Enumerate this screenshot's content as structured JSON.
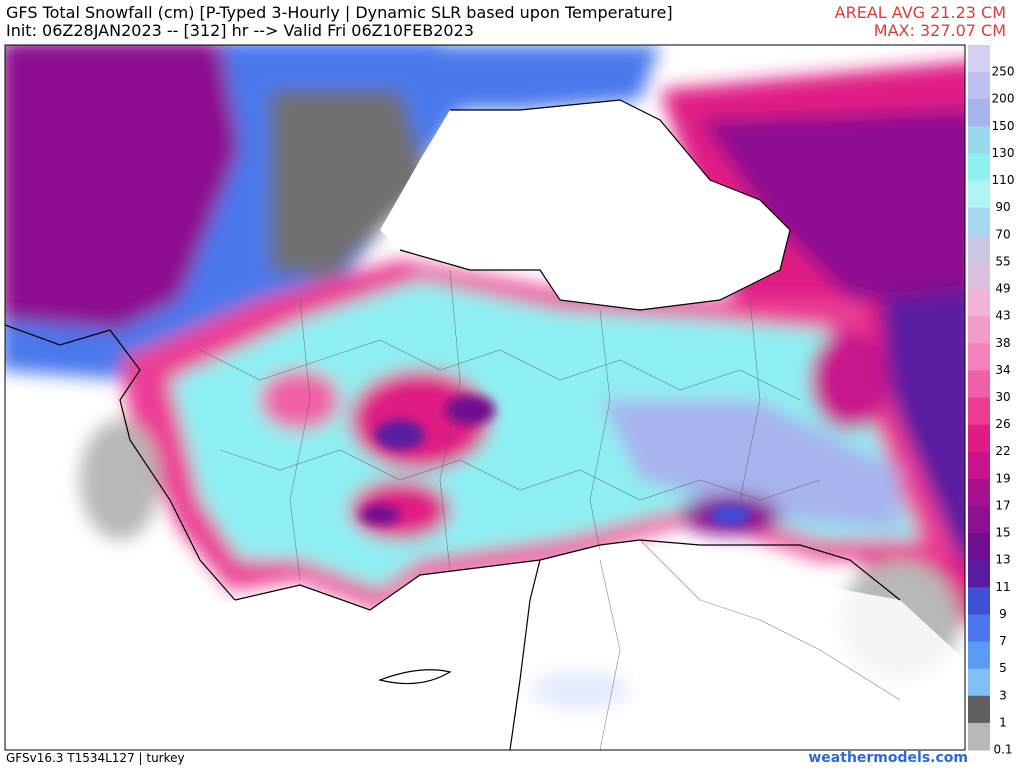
{
  "header": {
    "title": "GFS Total Snowfall (cm) [P-Typed 3-Hourly | Dynamic SLR based upon Temperature]",
    "subtitle": "Init: 06Z28JAN2023 -- [312] hr --> Valid Fri 06Z10FEB2023",
    "areal_avg": "AREAL AVG 21.23 CM",
    "max": "MAX: 327.07 CM"
  },
  "colorbar": {
    "labels": [
      250,
      200,
      150,
      130,
      110,
      90,
      70,
      55,
      49,
      43,
      38,
      34,
      30,
      26,
      22,
      19,
      17,
      15,
      13,
      11,
      9,
      7,
      5,
      3,
      1,
      0.1
    ],
    "colors": [
      "#d4d0f2",
      "#c0c0f0",
      "#a8b4ee",
      "#9ad8ec",
      "#8ef0f2",
      "#b0f4f4",
      "#a4d8f0",
      "#c8c8e4",
      "#dcc0e0",
      "#f0b4d8",
      "#f49cc8",
      "#f480bc",
      "#f060a8",
      "#ec3c94",
      "#e01c84",
      "#c8148c",
      "#a81090",
      "#8c1090",
      "#701090",
      "#5a1aa0",
      "#3c50d8",
      "#4a78ec",
      "#5a9cf4",
      "#80c0f4",
      "#606060",
      "#b8b8b8"
    ]
  },
  "footer": {
    "model": "GFSv16.3 T1534L127 | turkey",
    "site": "weathermodels.com"
  }
}
